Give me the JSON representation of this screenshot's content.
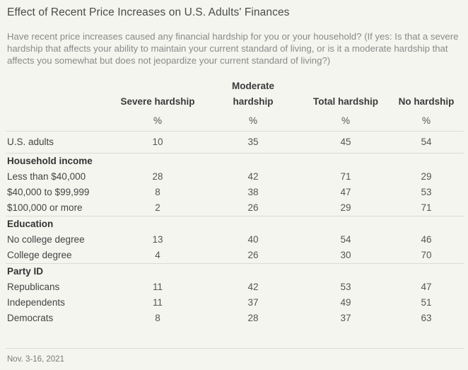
{
  "title": "Effect of Recent Price Increases on U.S. Adults' Finances",
  "question": "Have recent price increases caused any financial hardship for you or your household? (If yes: Is that a severe hardship that affects your ability to maintain your current standard of living, or is it a moderate hardship that affects you somewhat but does not jeopardize your current standard of living?)",
  "footnote": "Nov. 3-16, 2021",
  "chart_data": {
    "type": "table",
    "columns": [
      {
        "name_line1": "",
        "name_line2": "Severe hardship",
        "unit": "%"
      },
      {
        "name_line1": "Moderate",
        "name_line2": "hardship",
        "unit": "%"
      },
      {
        "name_line1": "",
        "name_line2": "Total hardship",
        "unit": "%"
      },
      {
        "name_line1": "",
        "name_line2": "No hardship",
        "unit": "%"
      }
    ],
    "overall": {
      "label": "U.S. adults",
      "values": [
        "10",
        "35",
        "45",
        "54"
      ]
    },
    "groups": [
      {
        "heading": "Household income",
        "rows": [
          {
            "label": "Less than $40,000",
            "values": [
              "28",
              "42",
              "71",
              "29"
            ]
          },
          {
            "label": "$40,000 to $99,999",
            "values": [
              "8",
              "38",
              "47",
              "53"
            ]
          },
          {
            "label": "$100,000 or more",
            "values": [
              "2",
              "26",
              "29",
              "71"
            ]
          }
        ]
      },
      {
        "heading": "Education",
        "rows": [
          {
            "label": "No college degree",
            "values": [
              "13",
              "40",
              "54",
              "46"
            ]
          },
          {
            "label": "College degree",
            "values": [
              "4",
              "26",
              "30",
              "70"
            ]
          }
        ]
      },
      {
        "heading": "Party ID",
        "rows": [
          {
            "label": "Republicans",
            "values": [
              "11",
              "42",
              "53",
              "47"
            ]
          },
          {
            "label": "Independents",
            "values": [
              "11",
              "37",
              "49",
              "51"
            ]
          },
          {
            "label": "Democrats",
            "values": [
              "8",
              "28",
              "37",
              "63"
            ]
          }
        ]
      }
    ]
  }
}
